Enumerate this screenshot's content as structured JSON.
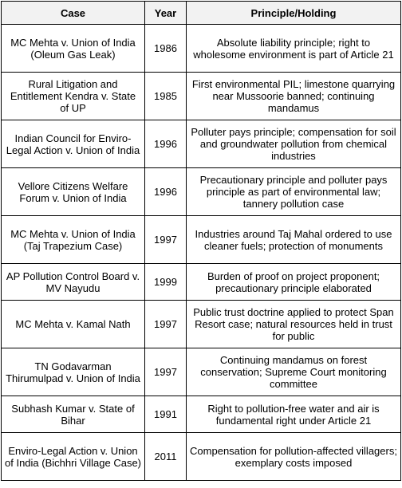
{
  "table": {
    "headers": {
      "case": "Case",
      "year": "Year",
      "principle": "Principle/Holding"
    },
    "rows": [
      {
        "case": "MC Mehta v. Union of India (Oleum Gas Leak)",
        "year": "1986",
        "principle": "Absolute liability principle; right to wholesome environment is part of Article 21"
      },
      {
        "case": "Rural Litigation and Entitlement Kendra v. State of UP",
        "year": "1985",
        "principle": "First environmental PIL; limestone quarrying near Mussoorie banned; continuing mandamus"
      },
      {
        "case": "Indian Council for Enviro-Legal Action v. Union of India",
        "year": "1996",
        "principle": "Polluter pays principle; compensation for soil and groundwater pollution from chemical industries"
      },
      {
        "case": "Vellore Citizens Welfare Forum v. Union of India",
        "year": "1996",
        "principle": "Precautionary principle and polluter pays principle as part of environmental law; tannery pollution case"
      },
      {
        "case": "MC Mehta v. Union of India (Taj Trapezium Case)",
        "year": "1997",
        "principle": "Industries around Taj Mahal ordered to use cleaner fuels; protection of monuments"
      },
      {
        "case": "AP Pollution Control Board v. MV Nayudu",
        "year": "1999",
        "principle": "Burden of proof on project proponent; precautionary principle elaborated"
      },
      {
        "case": "MC Mehta v. Kamal Nath",
        "year": "1997",
        "principle": "Public trust doctrine applied to protect Span Resort case; natural resources held in trust for public"
      },
      {
        "case": "TN Godavarman Thirumulpad v. Union of India",
        "year": "1997",
        "principle": "Continuing mandamus on forest conservation; Supreme Court monitoring committee"
      },
      {
        "case": "Subhash Kumar v. State of Bihar",
        "year": "1991",
        "principle": "Right to pollution-free water and air is fundamental right under Article 21"
      },
      {
        "case": "Enviro-Legal Action v. Union of India (Bichhri Village Case)",
        "year": "2011",
        "principle": "Compensation for pollution-affected villagers; exemplary costs imposed"
      }
    ]
  }
}
